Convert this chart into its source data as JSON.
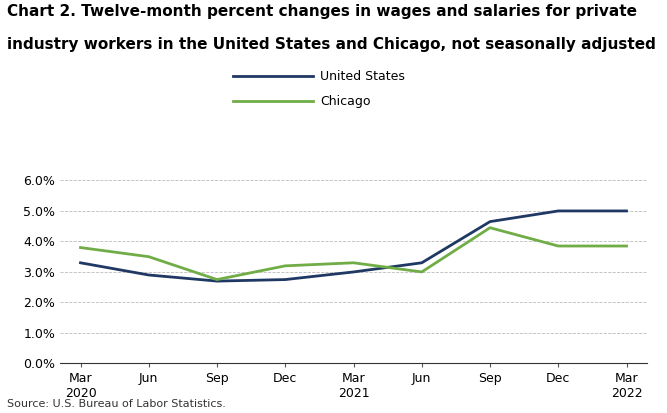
{
  "title_line1": "Chart 2. Twelve-month percent changes in wages and salaries for private",
  "title_line2": "industry workers in the United States and Chicago, not seasonally adjusted",
  "x_tick_labels": [
    "Mar\n2020",
    "Jun",
    "Sep",
    "Dec",
    "Mar\n2021",
    "Jun",
    "Sep",
    "Dec",
    "Mar\n2022"
  ],
  "us_values": [
    3.3,
    2.9,
    2.7,
    2.75,
    3.0,
    3.3,
    4.65,
    5.0,
    5.0
  ],
  "chicago_values": [
    3.8,
    3.5,
    2.75,
    3.2,
    3.3,
    3.0,
    4.45,
    3.85,
    3.85
  ],
  "us_color": "#1f3864",
  "chicago_color": "#70ad47",
  "us_label": "United States",
  "chicago_label": "Chicago",
  "ylim": [
    0.0,
    0.065
  ],
  "yticks": [
    0.0,
    0.01,
    0.02,
    0.03,
    0.04,
    0.05,
    0.06
  ],
  "ytick_labels": [
    "0.0%",
    "1.0%",
    "2.0%",
    "3.0%",
    "4.0%",
    "5.0%",
    "6.0%"
  ],
  "source": "Source: U.S. Bureau of Labor Statistics.",
  "background_color": "#ffffff",
  "line_width": 2.0,
  "title_fontsize": 11,
  "tick_fontsize": 9,
  "legend_fontsize": 9,
  "source_fontsize": 8
}
